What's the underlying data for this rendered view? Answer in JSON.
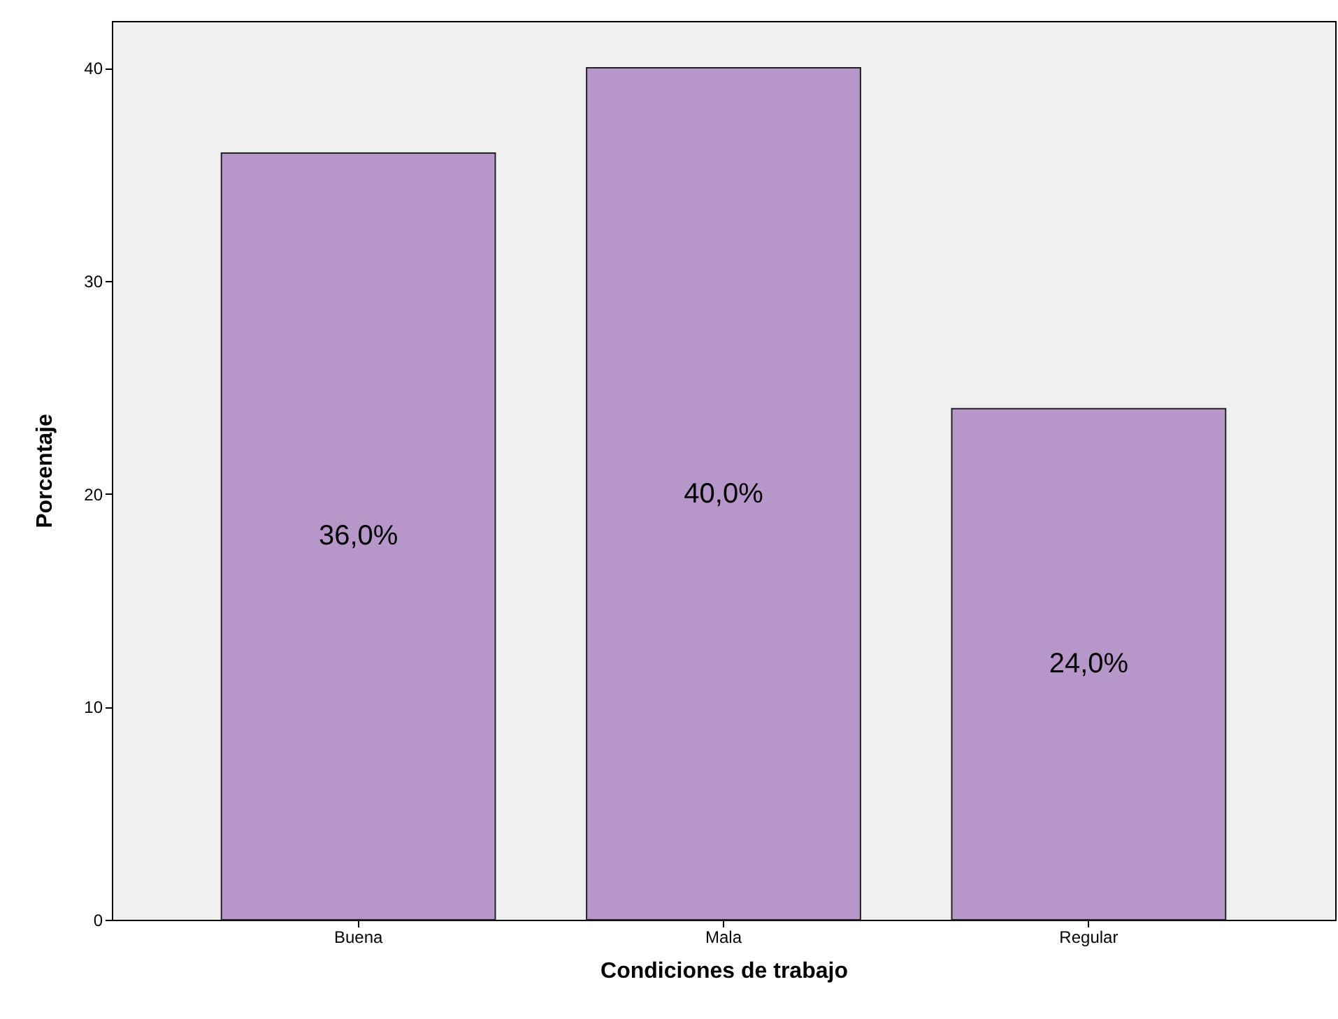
{
  "chart_data": {
    "type": "bar",
    "xlabel": "Condiciones de trabajo",
    "ylabel": "Porcentaje",
    "categories": [
      "Buena",
      "Mala",
      "Regular"
    ],
    "values": [
      36,
      40,
      24
    ],
    "value_labels": [
      "36,0%",
      "40,0%",
      "24,0%"
    ],
    "color": "#b797c9",
    "ylim": [
      0,
      42.2
    ],
    "yticks": [
      0,
      10,
      20,
      30,
      40
    ],
    "grid": false
  }
}
